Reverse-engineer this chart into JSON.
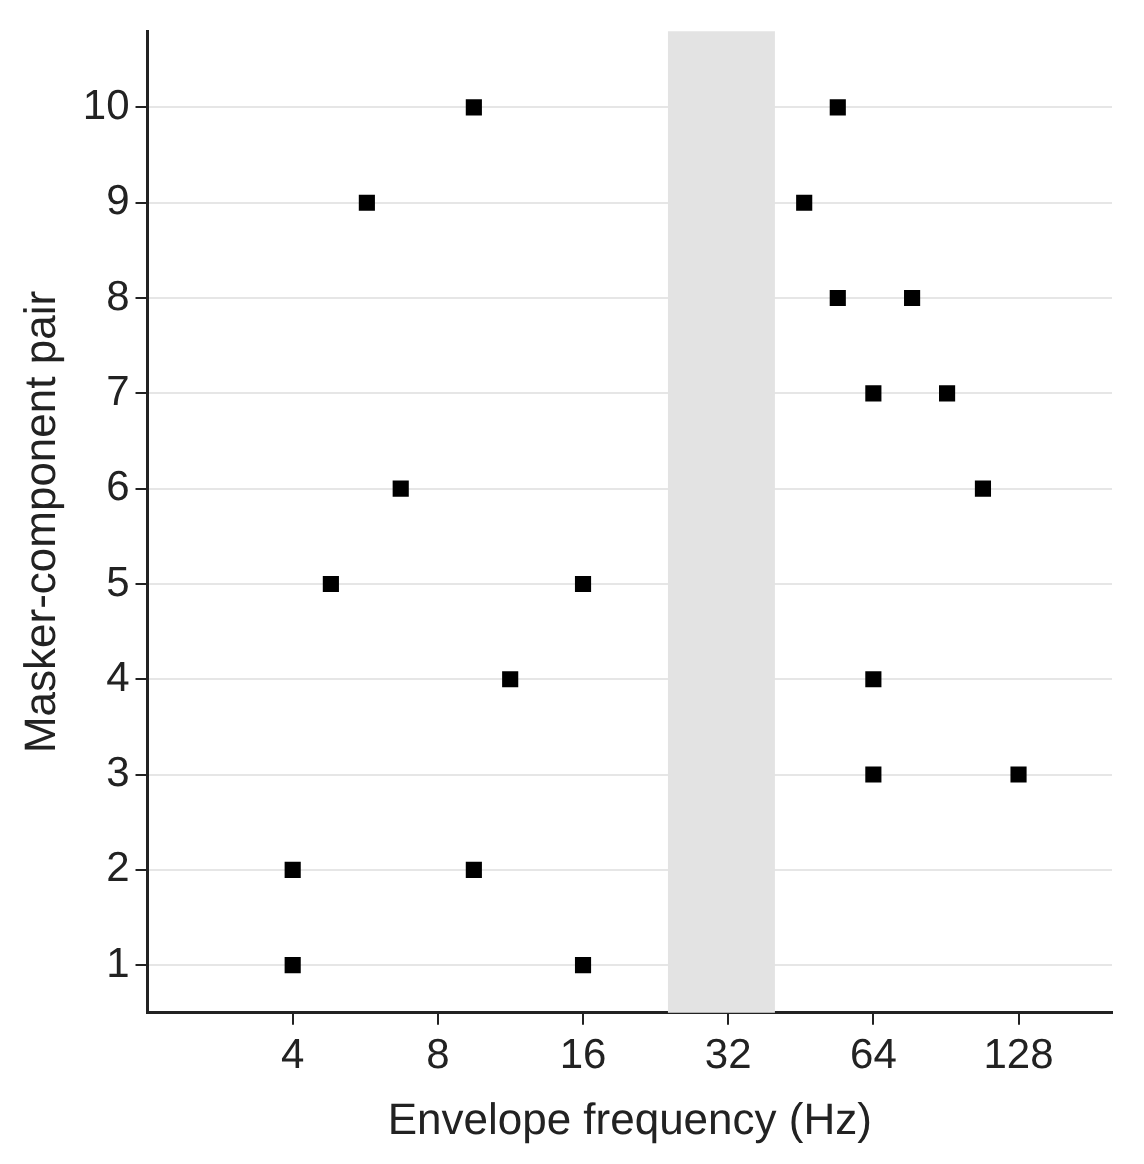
{
  "chart_data": {
    "type": "scatter",
    "xlabel": "Envelope frequency (Hz)",
    "ylabel": "Masker-component pair",
    "log": "x",
    "xlim": [
      2,
      200
    ],
    "xticks": [
      4,
      8,
      16,
      32,
      64,
      128
    ],
    "ylim": [
      0.5,
      10.8
    ],
    "yticks": [
      1,
      2,
      3,
      4,
      5,
      6,
      7,
      8,
      9,
      10
    ],
    "grid": "y",
    "legend": false,
    "marker": "square",
    "bands": [
      {
        "axis": "x",
        "from": 24,
        "to": 40,
        "color": "#e3e3e3"
      }
    ],
    "series": [
      {
        "color": "#000000",
        "x": [
          9.5,
          54,
          5.7,
          46,
          54,
          77,
          64,
          91,
          6.7,
          108,
          4.8,
          16,
          11.3,
          64,
          64,
          128,
          4,
          9.5,
          4,
          16
        ],
        "values": [
          10,
          10,
          9,
          9,
          8,
          8,
          7,
          7,
          6,
          6,
          5,
          5,
          4,
          4,
          3,
          3,
          2,
          2,
          1,
          1
        ]
      }
    ]
  }
}
